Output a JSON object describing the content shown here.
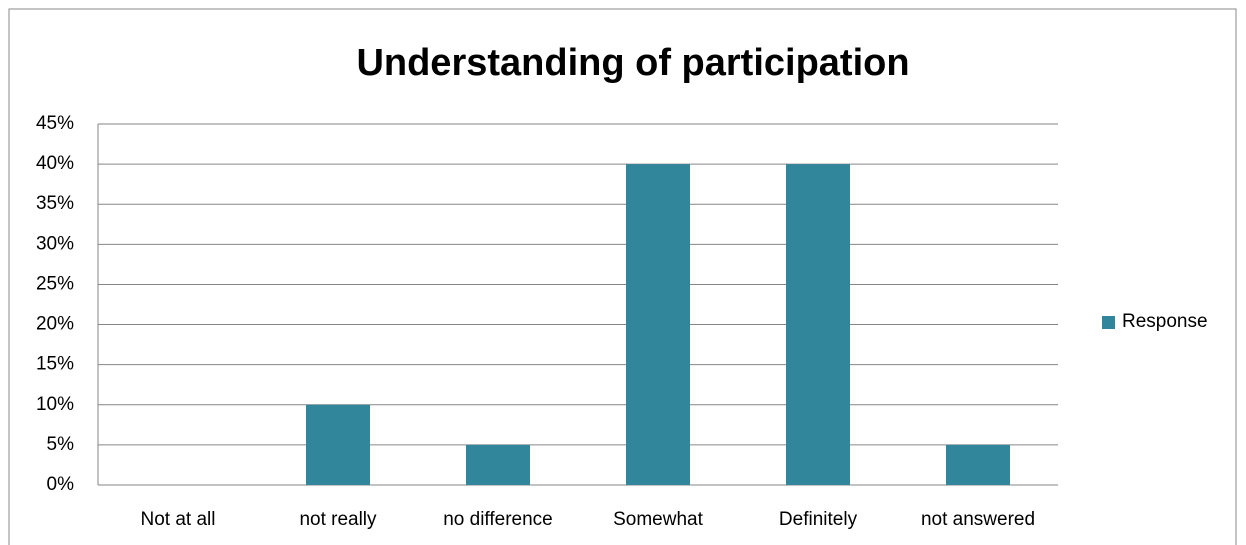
{
  "chart_data": {
    "type": "bar",
    "title": "Understanding of participation",
    "categories": [
      "Not at all",
      "not really",
      "no difference",
      "Somewhat",
      "Definitely",
      "not answered"
    ],
    "series": [
      {
        "name": "Response",
        "color": "#31869b",
        "values": [
          0,
          10,
          5,
          40,
          40,
          5
        ]
      }
    ],
    "ylim": [
      0,
      45
    ],
    "yticks": [
      {
        "value": 0,
        "label": "0%"
      },
      {
        "value": 5,
        "label": "5%"
      },
      {
        "value": 10,
        "label": "10%"
      },
      {
        "value": 15,
        "label": "15%"
      },
      {
        "value": 20,
        "label": "20%"
      },
      {
        "value": 25,
        "label": "25%"
      },
      {
        "value": 30,
        "label": "30%"
      },
      {
        "value": 35,
        "label": "35%"
      },
      {
        "value": 40,
        "label": "40%"
      },
      {
        "value": 45,
        "label": "45%"
      }
    ],
    "grid": true,
    "legend": "right"
  }
}
